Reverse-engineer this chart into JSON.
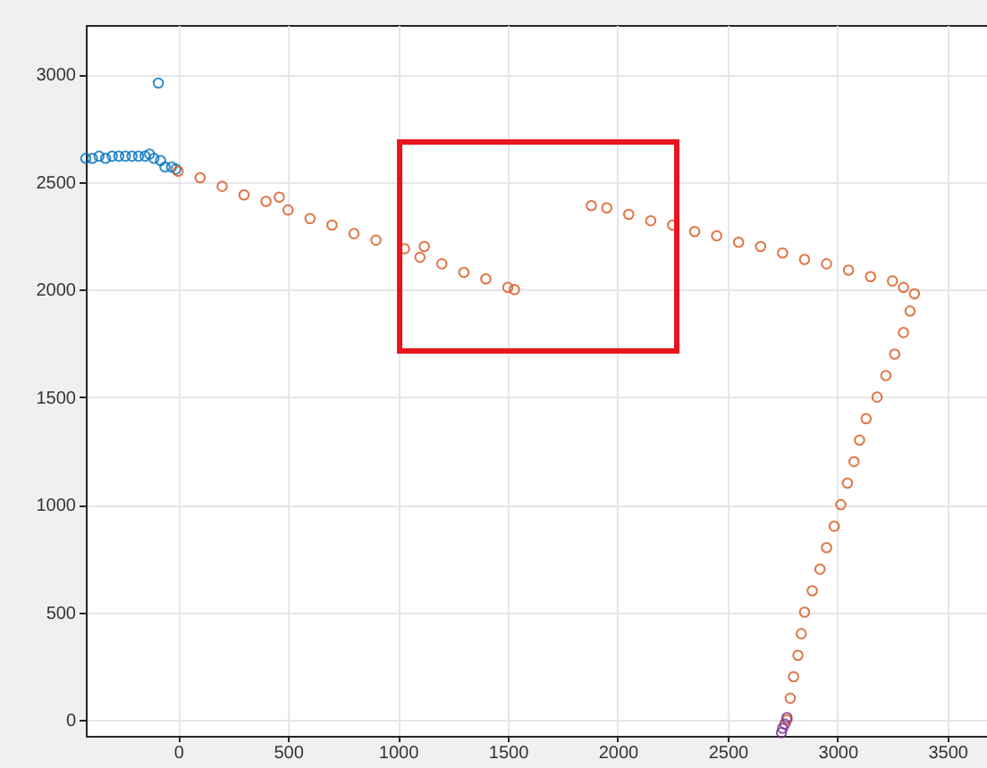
{
  "chart_data": {
    "type": "scatter",
    "marker": "circle",
    "grid": true,
    "xlim": [
      -420,
      3680
    ],
    "ylim": [
      -75,
      3230
    ],
    "xticks": [
      0,
      500,
      1000,
      1500,
      2000,
      2500,
      3000,
      3500
    ],
    "yticks": [
      0,
      500,
      1000,
      1500,
      2000,
      2500,
      3000
    ],
    "series": [
      {
        "color": "#0072bd",
        "x": [
          -420,
          -390,
          -360,
          -330,
          -300,
          -270,
          -240,
          -210,
          -180,
          -150,
          -130,
          -110,
          -90,
          -80,
          -60,
          -30,
          -10
        ],
        "values": [
          2610,
          2610,
          2620,
          2610,
          2620,
          2620,
          2620,
          2620,
          2620,
          2620,
          2630,
          2610,
          2960,
          2600,
          2570,
          2570,
          2560
        ]
      },
      {
        "color": "#d95319",
        "x": [
          0,
          100,
          200,
          300,
          400,
          460,
          500,
          600,
          700,
          800,
          900,
          1030,
          1100,
          1120,
          1200,
          1300,
          1400,
          1500,
          1530,
          1880,
          1950,
          2050,
          2150,
          2250,
          2350,
          2450,
          2550,
          2650,
          2750,
          2850,
          2950,
          3050,
          3150,
          3250,
          3300,
          3350,
          3330,
          3300,
          3260,
          3220,
          3180,
          3130,
          3100,
          3075,
          3045,
          3015,
          2985,
          2950,
          2920,
          2885,
          2850,
          2835,
          2820,
          2800,
          2785,
          2770
        ],
        "values": [
          2550,
          2520,
          2480,
          2440,
          2410,
          2430,
          2370,
          2330,
          2300,
          2260,
          2230,
          2190,
          2150,
          2200,
          2120,
          2080,
          2050,
          2010,
          2000,
          2390,
          2380,
          2350,
          2320,
          2300,
          2270,
          2250,
          2220,
          2200,
          2170,
          2140,
          2120,
          2090,
          2060,
          2040,
          2010,
          1980,
          1900,
          1800,
          1700,
          1600,
          1500,
          1400,
          1300,
          1200,
          1100,
          1000,
          900,
          800,
          700,
          600,
          500,
          400,
          300,
          200,
          100,
          0
        ]
      },
      {
        "color": "#7e2f8e",
        "x": [
          2770,
          2760,
          2750,
          2745
        ],
        "values": [
          10,
          -20,
          -40,
          -60
        ]
      }
    ]
  }
}
